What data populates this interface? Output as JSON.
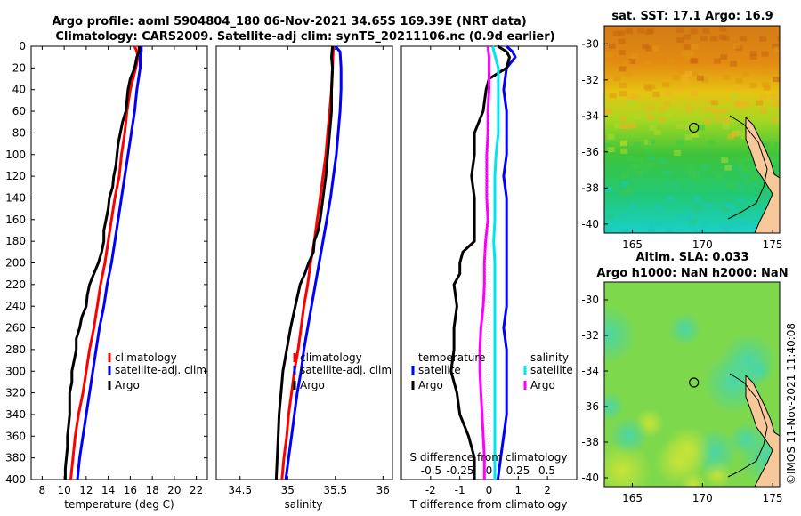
{
  "figure": {
    "title_line1": "Argo profile: aoml 5904804_180 06-Nov-2021 34.65S 169.39E (NRT data)",
    "title_line2": "Climatology: CARS2009. Satellite-adj clim: synTS_20211106.nc (0.9d earlier)",
    "timestamp": "©IMOS 11-Nov-2021 11:40:08"
  },
  "colors": {
    "climatology": "#ff0000",
    "satellite": "#0000ff",
    "argo": "#000000",
    "salinity_satellite": "#00e5ee",
    "salinity_argo": "#ff00ff"
  },
  "chart_data": [
    {
      "type": "line",
      "name": "temperature",
      "xlabel": "temperature (deg C)",
      "ylabel": "",
      "xlim": [
        7,
        23
      ],
      "ylim": [
        0,
        400
      ],
      "x_ticks": [
        "8",
        "10",
        "12",
        "14",
        "16",
        "18",
        "20",
        "22"
      ],
      "x_tick_values": [
        8,
        10,
        12,
        14,
        16,
        18,
        20,
        22
      ],
      "y_ticks": [
        "0",
        "20",
        "40",
        "60",
        "80",
        "100",
        "120",
        "140",
        "160",
        "180",
        "200",
        "220",
        "240",
        "260",
        "280",
        "300",
        "320",
        "340",
        "360",
        "380",
        "400"
      ],
      "y_tick_values": [
        0,
        20,
        40,
        60,
        80,
        100,
        120,
        140,
        160,
        180,
        200,
        220,
        240,
        260,
        280,
        300,
        320,
        340,
        360,
        380,
        400
      ],
      "legend": [
        "climatology",
        "satellite-adj. clim",
        "Argo"
      ],
      "series": [
        {
          "name": "climatology",
          "depth": [
            0,
            5,
            10,
            20,
            40,
            60,
            80,
            100,
            120,
            140,
            160,
            180,
            200,
            220,
            240,
            260,
            280,
            300,
            320,
            340,
            360,
            380,
            400
          ],
          "values": [
            16.4,
            16.6,
            16.7,
            16.5,
            16.0,
            15.7,
            15.5,
            15.2,
            15.0,
            14.6,
            14.3,
            14.0,
            13.7,
            13.3,
            13.0,
            12.7,
            12.3,
            12.0,
            11.7,
            11.3,
            11.0,
            10.8,
            10.6
          ]
        },
        {
          "name": "satellite-adj. clim",
          "depth": [
            0,
            5,
            10,
            20,
            40,
            60,
            80,
            100,
            120,
            140,
            160,
            180,
            200,
            220,
            240,
            260,
            280,
            300,
            320,
            340,
            360,
            380,
            400
          ],
          "values": [
            17.0,
            17.0,
            16.9,
            16.9,
            16.6,
            16.4,
            16.1,
            15.8,
            15.5,
            15.2,
            14.9,
            14.6,
            14.3,
            13.9,
            13.6,
            13.2,
            12.9,
            12.6,
            12.3,
            12.0,
            11.7,
            11.4,
            11.2
          ]
        },
        {
          "name": "Argo",
          "depth": [
            0,
            5,
            10,
            20,
            30,
            40,
            50,
            60,
            70,
            80,
            90,
            100,
            110,
            120,
            130,
            140,
            150,
            160,
            170,
            180,
            190,
            200,
            210,
            220,
            230,
            240,
            250,
            260,
            270,
            280,
            290,
            300,
            310,
            320,
            330,
            340,
            350,
            360,
            370,
            380,
            390,
            400
          ],
          "values": [
            16.8,
            16.8,
            16.6,
            16.4,
            16.0,
            15.8,
            15.7,
            15.6,
            15.3,
            15.1,
            14.9,
            14.8,
            14.7,
            14.5,
            14.4,
            14.1,
            14.0,
            13.8,
            13.6,
            13.6,
            13.4,
            13.1,
            12.7,
            12.3,
            12.1,
            12.0,
            11.6,
            11.4,
            11.1,
            11.1,
            10.9,
            10.7,
            10.7,
            10.5,
            10.5,
            10.5,
            10.4,
            10.3,
            10.3,
            10.2,
            10.1,
            10.1
          ]
        }
      ]
    },
    {
      "type": "line",
      "name": "salinity",
      "xlabel": "salinity",
      "xlim": [
        34.25,
        36.1
      ],
      "ylim": [
        0,
        400
      ],
      "x_ticks": [
        "34.5",
        "35",
        "35.5",
        "36"
      ],
      "x_tick_values": [
        34.5,
        35,
        35.5,
        36
      ],
      "legend": [
        "climatology",
        "satellite-adj. clim",
        "Argo"
      ],
      "series": [
        {
          "name": "climatology",
          "depth": [
            0,
            20,
            40,
            60,
            80,
            100,
            120,
            140,
            160,
            180,
            200,
            220,
            240,
            260,
            280,
            300,
            320,
            340,
            360,
            380,
            400
          ],
          "values": [
            35.48,
            35.47,
            35.46,
            35.44,
            35.42,
            35.4,
            35.37,
            35.34,
            35.31,
            35.28,
            35.24,
            35.21,
            35.17,
            35.14,
            35.11,
            35.07,
            35.04,
            35.01,
            34.99,
            34.96,
            34.94
          ]
        },
        {
          "name": "satellite-adj. clim",
          "depth": [
            0,
            5,
            20,
            40,
            60,
            80,
            100,
            120,
            140,
            160,
            180,
            200,
            220,
            240,
            260,
            280,
            300,
            320,
            340,
            360,
            380,
            400
          ],
          "values": [
            35.5,
            35.55,
            35.56,
            35.56,
            35.55,
            35.53,
            35.51,
            35.48,
            35.45,
            35.41,
            35.37,
            35.33,
            35.29,
            35.25,
            35.21,
            35.17,
            35.14,
            35.1,
            35.07,
            35.04,
            35.01,
            34.98
          ]
        },
        {
          "name": "Argo",
          "depth": [
            0,
            10,
            20,
            40,
            60,
            80,
            100,
            120,
            140,
            160,
            170,
            180,
            190,
            200,
            210,
            220,
            240,
            260,
            280,
            300,
            320,
            340,
            360,
            380,
            400
          ],
          "values": [
            35.47,
            35.46,
            35.47,
            35.46,
            35.46,
            35.44,
            35.42,
            35.4,
            35.37,
            35.34,
            35.32,
            35.28,
            35.27,
            35.22,
            35.18,
            35.13,
            35.08,
            35.03,
            34.99,
            34.95,
            34.93,
            34.91,
            34.9,
            34.89,
            34.88
          ]
        }
      ]
    },
    {
      "type": "line",
      "name": "differences",
      "xlabel": "T difference from climatology",
      "xlabel_top": "S difference from climatology",
      "xlim": [
        -3,
        3
      ],
      "ylim": [
        0,
        400
      ],
      "x_ticks": [
        "-2",
        "-1",
        "0",
        "1",
        "2"
      ],
      "x_tick_values": [
        -2,
        -1,
        0,
        1,
        2
      ],
      "s_ticks": [
        "-0.5",
        "-0.25",
        "0",
        "0.25",
        "0.5"
      ],
      "s_tick_values": [
        -0.5,
        -0.25,
        0,
        0.25,
        0.5
      ],
      "legend_temperature_title": "temperature",
      "legend_salinity_title": "salinity",
      "legend_temperature": [
        "satellite",
        "Argo"
      ],
      "legend_salinity": [
        "satellite",
        "Argo"
      ],
      "series": [
        {
          "name": "T satellite",
          "depth": [
            0,
            5,
            10,
            20,
            40,
            60,
            80,
            100,
            120,
            140,
            160,
            180,
            200,
            220,
            240,
            260,
            280,
            300,
            320,
            340,
            360,
            380,
            400
          ],
          "values": [
            0.6,
            0.8,
            0.9,
            0.6,
            0.5,
            0.6,
            0.6,
            0.6,
            0.5,
            0.6,
            0.6,
            0.6,
            0.6,
            0.6,
            0.6,
            0.5,
            0.6,
            0.6,
            0.6,
            0.6,
            0.5,
            0.4,
            0.3
          ]
        },
        {
          "name": "T Argo",
          "depth": [
            0,
            5,
            10,
            20,
            30,
            40,
            60,
            80,
            100,
            120,
            140,
            160,
            180,
            190,
            200,
            210,
            220,
            240,
            260,
            280,
            300,
            320,
            340,
            360,
            380,
            400
          ],
          "values": [
            0.3,
            0.6,
            0.7,
            0.6,
            0.0,
            -0.1,
            -0.2,
            -0.5,
            -0.5,
            -0.6,
            -0.5,
            -0.5,
            -0.5,
            -0.9,
            -1.0,
            -1.0,
            -1.2,
            -1.1,
            -1.2,
            -1.2,
            -1.3,
            -1.1,
            -1.0,
            -0.7,
            -0.5,
            -0.5
          ]
        },
        {
          "name": "S satellite",
          "depth": [
            0,
            20,
            40,
            60,
            80,
            100,
            120,
            140,
            160,
            180,
            200,
            220,
            240,
            260,
            280,
            300,
            320,
            340,
            360,
            380,
            400
          ],
          "values": [
            0.03,
            0.08,
            0.08,
            0.08,
            0.08,
            0.06,
            0.05,
            0.05,
            0.05,
            0.04,
            0.05,
            0.05,
            0.05,
            0.05,
            0.05,
            0.05,
            0.05,
            0.05,
            0.05,
            0.05,
            0.05
          ]
        },
        {
          "name": "S Argo",
          "depth": [
            0,
            10,
            20,
            40,
            60,
            80,
            100,
            120,
            140,
            160,
            180,
            200,
            220,
            240,
            260,
            280,
            300,
            320,
            340,
            360,
            380,
            400
          ],
          "values": [
            -0.01,
            0.0,
            0.0,
            0.0,
            -0.01,
            -0.01,
            -0.02,
            -0.02,
            -0.02,
            -0.01,
            -0.03,
            -0.04,
            -0.04,
            -0.05,
            -0.07,
            -0.08,
            -0.08,
            -0.07,
            -0.06,
            -0.05,
            -0.04,
            -0.04
          ]
        }
      ]
    },
    {
      "type": "heatmap",
      "name": "sst_map",
      "title": "sat. SST: 17.1  Argo: 16.9",
      "x_ticks": [
        "165",
        "170",
        "175"
      ],
      "x_tick_values": [
        165,
        170,
        175
      ],
      "y_ticks": [
        "-30",
        "-32",
        "-34",
        "-36",
        "-38",
        "-40"
      ],
      "y_tick_values": [
        -30,
        -32,
        -34,
        -36,
        -38,
        -40
      ],
      "xlim": [
        163,
        175.5
      ],
      "ylim": [
        -40.5,
        -29
      ],
      "argo_lon": 169.39,
      "argo_lat": -34.65
    },
    {
      "type": "heatmap",
      "name": "sla_map",
      "title_line1": "Altim. SLA: 0.033",
      "title_line2": "Argo h1000: NaN h2000: NaN",
      "x_ticks": [
        "165",
        "170",
        "175"
      ],
      "x_tick_values": [
        165,
        170,
        175
      ],
      "y_ticks": [
        "-30",
        "-32",
        "-34",
        "-36",
        "-38",
        "-40"
      ],
      "y_tick_values": [
        -30,
        -32,
        -34,
        -36,
        -38,
        -40
      ],
      "xlim": [
        163,
        175.5
      ],
      "ylim": [
        -40.5,
        -29
      ],
      "argo_lon": 169.39,
      "argo_lat": -34.65
    }
  ]
}
